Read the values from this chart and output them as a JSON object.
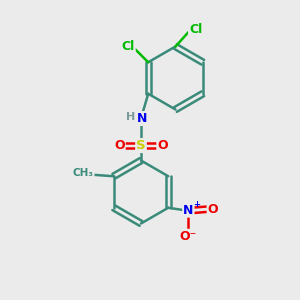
{
  "bg_color": "#ebebeb",
  "atom_colors": {
    "C": "#3a8a7a",
    "H": "#7a9a9a",
    "N": "#0000ee",
    "O": "#ee0000",
    "S": "#cccc00",
    "Cl": "#00bb00"
  },
  "bond_color": "#3a8a7a",
  "bond_width": 1.8
}
